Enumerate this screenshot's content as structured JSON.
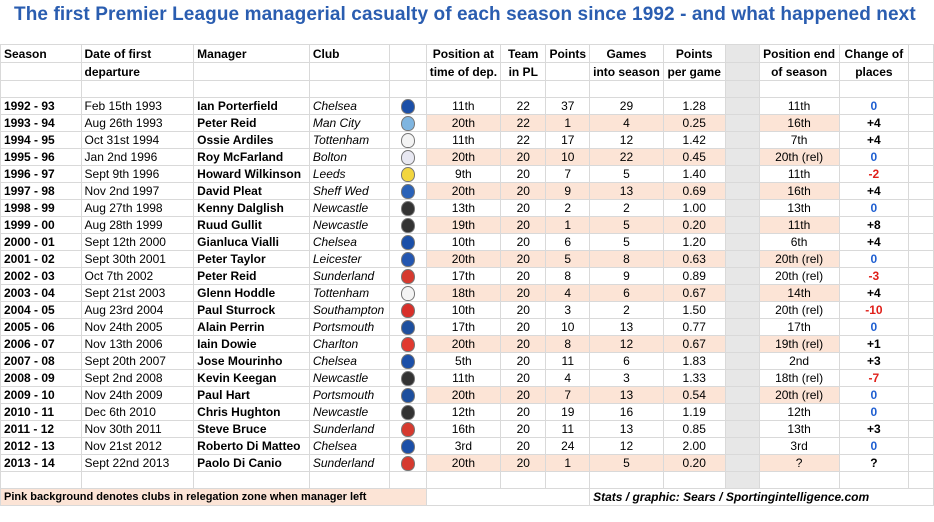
{
  "title": "The first Premier League managerial casualty of each season since 1992  -  and what happened next",
  "headers": {
    "season": "Season",
    "date1": "Date of first",
    "date2": "departure",
    "manager": "Manager",
    "club": "Club",
    "pos1": "Position at",
    "pos2": "time of dep.",
    "team1": "Team",
    "team2": "in PL",
    "points": "Points",
    "games1": "Games",
    "games2": "into season",
    "ppg1": "Points",
    "ppg2": "per game",
    "end1": "Position end",
    "end2": "of season",
    "change1": "Change of",
    "change2": "places"
  },
  "rows": [
    {
      "season": "1992 - 93",
      "date": "Feb 15th 1993",
      "manager": "Ian Porterfield",
      "club": "Chelsea",
      "crest": "#1b4fa8",
      "pos": "11th",
      "team": "22",
      "points": "37",
      "games": "29",
      "ppg": "1.28",
      "end": "11th",
      "change": "0",
      "tone": "blue",
      "pink": false
    },
    {
      "season": "1993 - 94",
      "date": "Aug 26th 1993",
      "manager": "Peter Reid",
      "club": "Man City",
      "crest": "#7fb5e0",
      "pos": "20th",
      "team": "22",
      "points": "1",
      "games": "4",
      "ppg": "0.25",
      "end": "16th",
      "change": "+4",
      "tone": "blk",
      "pink": true
    },
    {
      "season": "1994 - 95",
      "date": "Oct 31st 1994",
      "manager": "Ossie Ardiles",
      "club": "Tottenham",
      "crest": "#f4f4f4",
      "pos": "11th",
      "team": "22",
      "points": "17",
      "games": "12",
      "ppg": "1.42",
      "end": "7th",
      "change": "+4",
      "tone": "blk",
      "pink": false
    },
    {
      "season": "1995 - 96",
      "date": "Jan 2nd 1996",
      "manager": "Roy McFarland",
      "club": "Bolton",
      "crest": "#e8e8f2",
      "pos": "20th",
      "team": "20",
      "points": "10",
      "games": "22",
      "ppg": "0.45",
      "end": "20th (rel)",
      "change": "0",
      "tone": "blue",
      "pink": true
    },
    {
      "season": "1996 - 97",
      "date": "Sept 9th 1996",
      "manager": "Howard Wilkinson",
      "club": "Leeds",
      "crest": "#f2d640",
      "pos": "9th",
      "team": "20",
      "points": "7",
      "games": "5",
      "ppg": "1.40",
      "end": "11th",
      "change": "-2",
      "tone": "red",
      "pink": false
    },
    {
      "season": "1997 - 98",
      "date": "Nov 2nd 1997",
      "manager": "David Pleat",
      "club": "Sheff Wed",
      "crest": "#2a62b8",
      "pos": "20th",
      "team": "20",
      "points": "9",
      "games": "13",
      "ppg": "0.69",
      "end": "16th",
      "change": "+4",
      "tone": "blk",
      "pink": true
    },
    {
      "season": "1998 - 99",
      "date": "Aug 27th 1998",
      "manager": "Kenny Dalglish",
      "club": "Newcastle",
      "crest": "#333333",
      "pos": "13th",
      "team": "20",
      "points": "2",
      "games": "2",
      "ppg": "1.00",
      "end": "13th",
      "change": "0",
      "tone": "blue",
      "pink": false
    },
    {
      "season": "1999 - 00",
      "date": "Aug 28th 1999",
      "manager": "Ruud Gullit",
      "club": "Newcastle",
      "crest": "#333333",
      "pos": "19th",
      "team": "20",
      "points": "1",
      "games": "5",
      "ppg": "0.20",
      "end": "11th",
      "change": "+8",
      "tone": "blk",
      "pink": true
    },
    {
      "season": "2000 - 01",
      "date": "Sept 12th 2000",
      "manager": "Gianluca Vialli",
      "club": "Chelsea",
      "crest": "#1b4fa8",
      "pos": "10th",
      "team": "20",
      "points": "6",
      "games": "5",
      "ppg": "1.20",
      "end": "6th",
      "change": "+4",
      "tone": "blk",
      "pink": false
    },
    {
      "season": "2001 - 02",
      "date": "Sept 30th 2001",
      "manager": "Peter Taylor",
      "club": "Leicester",
      "crest": "#2356b0",
      "pos": "20th",
      "team": "20",
      "points": "5",
      "games": "8",
      "ppg": "0.63",
      "end": "20th (rel)",
      "change": "0",
      "tone": "blue",
      "pink": true
    },
    {
      "season": "2002 - 03",
      "date": "Oct 7th 2002",
      "manager": "Peter Reid",
      "club": "Sunderland",
      "crest": "#d63a2f",
      "pos": "17th",
      "team": "20",
      "points": "8",
      "games": "9",
      "ppg": "0.89",
      "end": "20th (rel)",
      "change": "-3",
      "tone": "red",
      "pink": false
    },
    {
      "season": "2003 - 04",
      "date": "Sept 21st 2003",
      "manager": "Glenn Hoddle",
      "club": "Tottenham",
      "crest": "#f4f4f4",
      "pos": "18th",
      "team": "20",
      "points": "4",
      "games": "6",
      "ppg": "0.67",
      "end": "14th",
      "change": "+4",
      "tone": "blk",
      "pink": true
    },
    {
      "season": "2004 - 05",
      "date": "Aug 23rd 2004",
      "manager": "Paul Sturrock",
      "club": "Southampton",
      "crest": "#d8302a",
      "pos": "10th",
      "team": "20",
      "points": "3",
      "games": "2",
      "ppg": "1.50",
      "end": "20th (rel)",
      "change": "-10",
      "tone": "red",
      "pink": false
    },
    {
      "season": "2005 - 06",
      "date": "Nov 24th 2005",
      "manager": "Alain Perrin",
      "club": "Portsmouth",
      "crest": "#1d4f9e",
      "pos": "17th",
      "team": "20",
      "points": "10",
      "games": "13",
      "ppg": "0.77",
      "end": "17th",
      "change": "0",
      "tone": "blue",
      "pink": false
    },
    {
      "season": "2006 - 07",
      "date": "Nov 13th 2006",
      "manager": "Iain Dowie",
      "club": "Charlton",
      "crest": "#e03a30",
      "pos": "20th",
      "team": "20",
      "points": "8",
      "games": "12",
      "ppg": "0.67",
      "end": "19th (rel)",
      "change": "+1",
      "tone": "blk",
      "pink": true
    },
    {
      "season": "2007 - 08",
      "date": "Sept 20th 2007",
      "manager": "Jose Mourinho",
      "club": "Chelsea",
      "crest": "#1b4fa8",
      "pos": "5th",
      "team": "20",
      "points": "11",
      "games": "6",
      "ppg": "1.83",
      "end": "2nd",
      "change": "+3",
      "tone": "blk",
      "pink": false
    },
    {
      "season": "2008 - 09",
      "date": "Sept 2nd 2008",
      "manager": "Kevin Keegan",
      "club": "Newcastle",
      "crest": "#333333",
      "pos": "11th",
      "team": "20",
      "points": "4",
      "games": "3",
      "ppg": "1.33",
      "end": "18th (rel)",
      "change": "-7",
      "tone": "red",
      "pink": false
    },
    {
      "season": "2009 - 10",
      "date": "Nov 24th 2009",
      "manager": "Paul Hart",
      "club": "Portsmouth",
      "crest": "#1d4f9e",
      "pos": "20th",
      "team": "20",
      "points": "7",
      "games": "13",
      "ppg": "0.54",
      "end": "20th (rel)",
      "change": "0",
      "tone": "blue",
      "pink": true
    },
    {
      "season": "2010 - 11",
      "date": "Dec 6th 2010",
      "manager": "Chris Hughton",
      "club": "Newcastle",
      "crest": "#333333",
      "pos": "12th",
      "team": "20",
      "points": "19",
      "games": "16",
      "ppg": "1.19",
      "end": "12th",
      "change": "0",
      "tone": "blue",
      "pink": false
    },
    {
      "season": "2011 - 12",
      "date": "Nov 30th 2011",
      "manager": "Steve Bruce",
      "club": "Sunderland",
      "crest": "#d63a2f",
      "pos": "16th",
      "team": "20",
      "points": "11",
      "games": "13",
      "ppg": "0.85",
      "end": "13th",
      "change": "+3",
      "tone": "blk",
      "pink": false
    },
    {
      "season": "2012 - 13",
      "date": "Nov 21st 2012",
      "manager": "Roberto Di Matteo",
      "club": "Chelsea",
      "crest": "#1b4fa8",
      "pos": "3rd",
      "team": "20",
      "points": "24",
      "games": "12",
      "ppg": "2.00",
      "end": "3rd",
      "change": "0",
      "tone": "blue",
      "pink": false
    },
    {
      "season": "2013 - 14",
      "date": "Sept 22nd 2013",
      "manager": "Paolo Di Canio",
      "club": "Sunderland",
      "crest": "#d63a2f",
      "pos": "20th",
      "team": "20",
      "points": "1",
      "games": "5",
      "ppg": "0.20",
      "end": "?",
      "change": "?",
      "tone": "blk",
      "pink": true
    }
  ],
  "footer": {
    "note": "Pink background denotes clubs in relegation zone when manager left",
    "credit": "Stats / graphic: Sears / Sportingintelligence.com"
  }
}
